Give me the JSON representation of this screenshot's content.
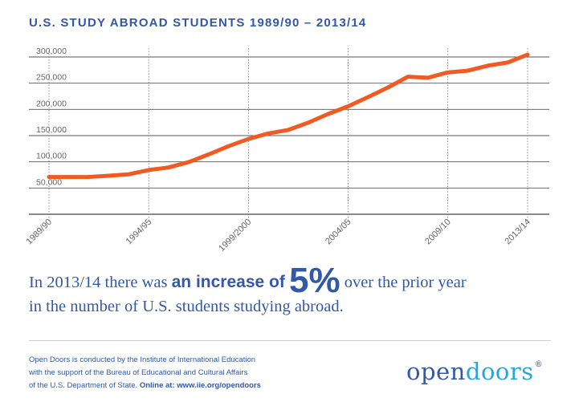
{
  "title": "U.S. STUDY ABROAD STUDENTS 1989/90 – 2013/14",
  "chart_data": {
    "type": "line",
    "title": "U.S. STUDY ABROAD STUDENTS 1989/90 – 2013/14",
    "xlabel": "",
    "ylabel": "",
    "x_labels": [
      "1989/90",
      "1994/95",
      "1999/2000",
      "2004/05",
      "2009/10",
      "2013/14"
    ],
    "x_label_positions": [
      0,
      5,
      10,
      15,
      20,
      24
    ],
    "y_ticks": [
      50000,
      100000,
      150000,
      200000,
      250000,
      300000
    ],
    "y_tick_labels": [
      "50,000",
      "100,000",
      "150,000",
      "200,000",
      "250,000",
      "300,000"
    ],
    "ylim": [
      0,
      300000
    ],
    "grid": "horizontal",
    "line_color": "#f15a22",
    "series": [
      {
        "values": [
          71000,
          71000,
          71200,
          73500,
          76300,
          84400,
          89200,
          99400,
          114000,
          129800,
          143600,
          154200,
          160900,
          174600,
          191300,
          205900,
          223500,
          241800,
          262400,
          260300,
          270600,
          273900,
          283300,
          289400,
          304500
        ]
      }
    ]
  },
  "headline": {
    "part1": "In 2013/14 there was",
    "part2": "an increase of",
    "big": "5%",
    "part3": "over the prior year",
    "line2": "in the number of U.S. students studying abroad."
  },
  "footer": {
    "line1": "Open Doors is conducted by the Institute of International Education",
    "line2": "with the support of the Bureau of Educational and Cultural Affairs",
    "line3": "of the U.S. Department of State.",
    "line3_bold": "Online at: www.iie.org/opendoors"
  },
  "logo": {
    "part1": "open",
    "part2": "doors",
    "mark": "®"
  },
  "colors": {
    "title": "#3358a6",
    "line": "#f15a22",
    "logo_accent": "#2aa5dc"
  }
}
